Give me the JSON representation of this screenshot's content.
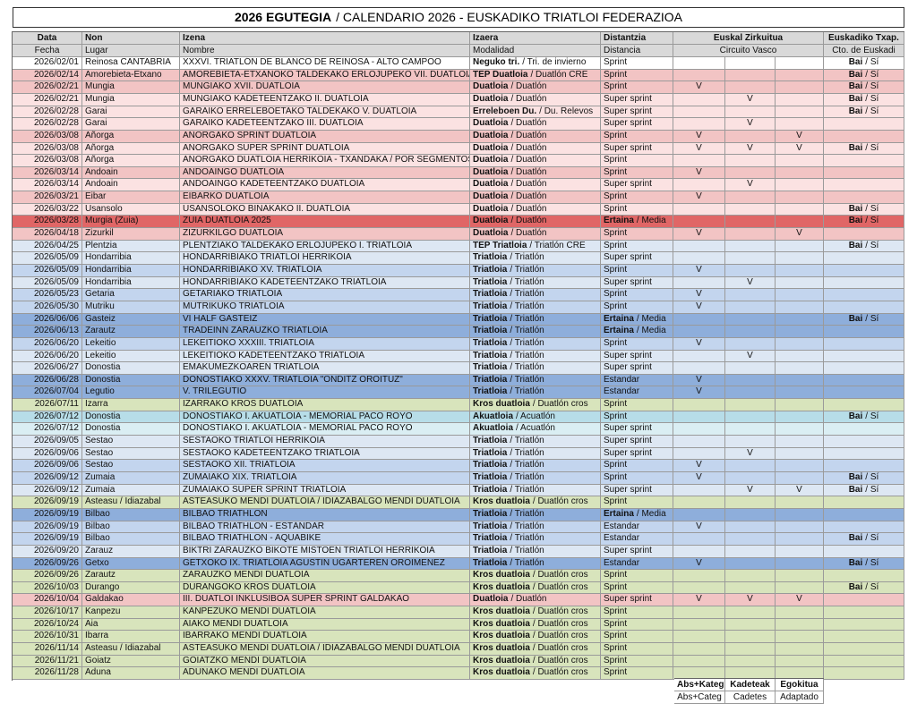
{
  "title": [
    "2026 EGUTEGIA",
    "/ CALENDARIO 2026 - EUSKADIKO TRIATLOI FEDERAZIOA"
  ],
  "header": {
    "row1": [
      "Data",
      "Non",
      "Izena",
      "Izaera",
      "Distantzia",
      "Euskal Zirkuitua",
      "Euskadiko Txap."
    ],
    "row2": [
      "Fecha",
      "Lugar",
      "Nombre",
      "Modalidad",
      "Distancia",
      "Circuito Vasco",
      "Cto. de  Euskadi"
    ]
  },
  "table": {
    "rows": [
      [
        "2026/02/01",
        "Reinosa CANTABRIA",
        "XXXVI. TRIATLÓN DE BLANCO DE REINOSA - ALTO CAMPOO",
        [
          "Neguko tri.",
          "/ Tri. de invierno"
        ],
        "Sprint",
        [
          null,
          null,
          null
        ],
        [
          "Bai",
          "/ Sí"
        ],
        "#ffffff"
      ],
      [
        "2026/02/14",
        "Amorebieta-Etxano",
        "AMOREBIETA-ETXANOKO TALDEKAKO ERLOJUPEKO VII. DUATLOIA",
        [
          "TEP Duatloia",
          "/ Duatlón CRE"
        ],
        "Sprint",
        [
          null,
          null,
          null
        ],
        [
          "Bai",
          "/ Sí"
        ],
        "#f2c4c4"
      ],
      [
        "2026/02/21",
        "Mungia",
        "MUNGIAKO XVII. DUATLOIA",
        [
          "Duatloia",
          "/ Duatlón"
        ],
        "Sprint",
        [
          "V",
          null,
          null
        ],
        [
          "Bai",
          "/ Sí"
        ],
        "#f2c4c4"
      ],
      [
        "2026/02/21",
        "Mungia",
        "MUNGIAKO KADETEENTZAKO II. DUATLOIA",
        [
          "Duatloia",
          "/ Duatlón"
        ],
        "Super sprint",
        [
          null,
          "V",
          null
        ],
        [
          "Bai",
          "/ Sí"
        ],
        "#fbe2e2"
      ],
      [
        "2026/02/28",
        "Garai",
        "GARAIKO ERRELEBOETAKO TALDEKAKO V. DUATLOIA",
        [
          "Erreleboen Du.",
          "/ Du. Relevos"
        ],
        "Super sprint",
        [
          null,
          null,
          null
        ],
        [
          "Bai",
          "/ Sí"
        ],
        "#fbe2e2"
      ],
      [
        "2026/02/28",
        "Garai",
        "GARAIKO KADETEENTZAKO III. DUATLOIA",
        [
          "Duatloia",
          "/ Duatlón"
        ],
        "Super sprint",
        [
          null,
          "V",
          null
        ],
        null,
        "#fbe2e2"
      ],
      [
        "2026/03/08",
        "Añorga",
        "AÑORGAKO SPRINT DUATLOIA",
        [
          "Duatloia",
          "/ Duatlón"
        ],
        "Sprint",
        [
          "V",
          null,
          "V"
        ],
        null,
        "#f2c4c4"
      ],
      [
        "2026/03/08",
        "Añorga",
        "AÑORGAKO SUPER SPRINT DUATLOIA",
        [
          "Duatloia",
          "/ Duatlón"
        ],
        "Super sprint",
        [
          "V",
          "V",
          "V"
        ],
        [
          "Bai",
          "/ Sí"
        ],
        "#fbe2e2"
      ],
      [
        "2026/03/08",
        "Añorga",
        "AÑORGAKO DUATLOIA HERRIKOIA - TXANDAKA / POR SEGMENTOS",
        [
          "Duatloia",
          "/ Duatlón"
        ],
        "Sprint",
        [
          null,
          null,
          null
        ],
        null,
        "#fbe2e2"
      ],
      [
        "2026/03/14",
        "Andoain",
        "ANDOAINGO DUATLOIA",
        [
          "Duatloia",
          "/ Duatlón"
        ],
        "Sprint",
        [
          "V",
          null,
          null
        ],
        null,
        "#f2c4c4"
      ],
      [
        "2026/03/14",
        "Andoain",
        "ANDOAINGO KADETEENTZAKO DUATLOIA",
        [
          "Duatloia",
          "/ Duatlón"
        ],
        "Super sprint",
        [
          null,
          "V",
          null
        ],
        null,
        "#fbe2e2"
      ],
      [
        "2026/03/21",
        "Eibar",
        "EIBARKO DUATLOIA",
        [
          "Duatloia",
          "/ Duatlón"
        ],
        "Sprint",
        [
          "V",
          null,
          null
        ],
        null,
        "#f2c4c4"
      ],
      [
        "2026/03/22",
        "Usansolo",
        "USANSOLOKO BINAKAKO II. DUATLOIA",
        [
          "Duatloia",
          "/ Duatlón"
        ],
        "Sprint",
        [
          null,
          null,
          null
        ],
        [
          "Bai",
          "/ Sí"
        ],
        "#fbe2e2"
      ],
      [
        "2026/03/28",
        "Murgia (Zuia)",
        "ZUIA DUATLOIA 2025",
        [
          "Duatloia",
          "/ Duatlón"
        ],
        [
          "Ertaina",
          "/ Media"
        ],
        [
          null,
          null,
          null
        ],
        [
          "Bai",
          "/ Sí"
        ],
        "#e06666"
      ],
      [
        "2026/04/18",
        "Zizurkil",
        "ZIZURKILGO DUATLOIA",
        [
          "Duatloia",
          "/ Duatlón"
        ],
        "Sprint",
        [
          "V",
          null,
          "V"
        ],
        null,
        "#f2c4c4"
      ],
      [
        "2026/04/25",
        "Plentzia",
        "PLENTZIAKO TALDEKAKO ERLOJUPEKO I. TRIATLOIA",
        [
          "TEP Triatloia",
          "/ Triatlón CRE"
        ],
        "Sprint",
        [
          null,
          null,
          null
        ],
        [
          "Bai",
          "/ Sí"
        ],
        "#dde7f3"
      ],
      [
        "2026/05/09",
        "Hondarribia",
        "HONDARRIBIAKO TRIATLOI HERRIKOIA",
        [
          "Triatloia",
          "/ Triatlón"
        ],
        "Super sprint",
        [
          null,
          null,
          null
        ],
        null,
        "#dde7f3"
      ],
      [
        "2026/05/09",
        "Hondarribia",
        "HONDARRIBIAKO XV. TRIATLOIA",
        [
          "Triatloia",
          "/ Triatlón"
        ],
        "Sprint",
        [
          "V",
          null,
          null
        ],
        null,
        "#c3d5ee"
      ],
      [
        "2026/05/09",
        "Hondarribia",
        "HONDARRIBIAKO KADETEENTZAKO TRIATLOIA",
        [
          "Triatloia",
          "/ Triatlón"
        ],
        "Super sprint",
        [
          null,
          "V",
          null
        ],
        null,
        "#dde7f3"
      ],
      [
        "2026/05/23",
        "Getaria",
        "GETARIAKO TRIATLOIA",
        [
          "Triatloia",
          "/ Triatlón"
        ],
        "Sprint",
        [
          "V",
          null,
          null
        ],
        null,
        "#c3d5ee"
      ],
      [
        "2026/05/30",
        "Mutriku",
        "MUTRIKUKO TRIATLOIA",
        [
          "Triatloia",
          "/ Triatlón"
        ],
        "Sprint",
        [
          "V",
          null,
          null
        ],
        null,
        "#c3d5ee"
      ],
      [
        "2026/06/06",
        "Gasteiz",
        "VI HALF GASTEIZ",
        [
          "Triatloia",
          "/ Triatlón"
        ],
        [
          "Ertaina",
          "/ Media"
        ],
        [
          null,
          null,
          null
        ],
        [
          "Bai",
          "/ Sí"
        ],
        "#8eaedb"
      ],
      [
        "2026/06/13",
        "Zarautz",
        "TRADEINN ZARAUZKO TRIATLOIA",
        [
          "Triatloia",
          "/ Triatlón"
        ],
        [
          "Ertaina",
          "/ Media"
        ],
        [
          null,
          null,
          null
        ],
        null,
        "#8eaedb"
      ],
      [
        "2026/06/20",
        "Lekeitio",
        "LEKEITIOKO XXXIII. TRIATLOIA",
        [
          "Triatloia",
          "/ Triatlón"
        ],
        "Sprint",
        [
          "V",
          null,
          null
        ],
        null,
        "#c3d5ee"
      ],
      [
        "2026/06/20",
        "Lekeitio",
        "LEKEITIOKO KADETEENTZAKO TRIATLOIA",
        [
          "Triatloia",
          "/ Triatlón"
        ],
        "Super sprint",
        [
          null,
          "V",
          null
        ],
        null,
        "#dde7f3"
      ],
      [
        "2026/06/27",
        "Donostia",
        "EMAKUMEZKOAREN TRIATLOIA",
        [
          "Triatloia",
          "/ Triatlón"
        ],
        "Super sprint",
        [
          null,
          null,
          null
        ],
        null,
        "#dde7f3"
      ],
      [
        "2026/06/28",
        "Donostia",
        "DONOSTIAKO XXXV. TRIATLOIA \"ONDITZ OROITUZ\"",
        [
          "Triatloia",
          "/ Triatlón"
        ],
        "Estandar",
        [
          "V",
          null,
          null
        ],
        null,
        "#8eaedb"
      ],
      [
        "2026/07/04",
        "Legutio",
        "V. TRILEGUTIO",
        [
          "Triatloia",
          "/ Triatlón"
        ],
        "Estandar",
        [
          "V",
          null,
          null
        ],
        null,
        "#8eaedb"
      ],
      [
        "2026/07/11",
        "Izarra",
        "IZARRAKO KROS DUATLOIA",
        [
          "Kros duatloia",
          "/ Duatlón cros"
        ],
        "Sprint",
        [
          null,
          null,
          null
        ],
        null,
        "#d8e4bc"
      ],
      [
        "2026/07/12",
        "Donostia",
        "DONOSTIAKO I. AKUATLOIA - MEMORIAL PACO ROYO",
        [
          "Akuatloia",
          "/ Acuatlón"
        ],
        "Sprint",
        [
          null,
          null,
          null
        ],
        [
          "Bai",
          "/ Sí"
        ],
        "#b7dde8"
      ],
      [
        "2026/07/12",
        "Donostia",
        "DONOSTIAKO I. AKUATLOIA - MEMORIAL PACO ROYO",
        [
          "Akuatloia",
          "/ Acuatlón"
        ],
        "Super sprint",
        [
          null,
          null,
          null
        ],
        null,
        "#daeef3"
      ],
      [
        "2026/09/05",
        "Sestao",
        "SESTAOKO TRIATLOI HERRIKOIA",
        [
          "Triatloia",
          "/ Triatlón"
        ],
        "Super sprint",
        [
          null,
          null,
          null
        ],
        null,
        "#dde7f3"
      ],
      [
        "2026/09/06",
        "Sestao",
        "SESTAOKO KADETEENTZAKO TRIATLOIA",
        [
          "Triatloia",
          "/ Triatlón"
        ],
        "Super sprint",
        [
          null,
          "V",
          null
        ],
        null,
        "#dde7f3"
      ],
      [
        "2026/09/06",
        "Sestao",
        "SESTAOKO XII. TRIATLOIA",
        [
          "Triatloia",
          "/ Triatlón"
        ],
        "Sprint",
        [
          "V",
          null,
          null
        ],
        null,
        "#c3d5ee"
      ],
      [
        "2026/09/12",
        "Zumaia",
        "ZUMAIAKO XIX. TRIATLOIA",
        [
          "Triatloia",
          "/ Triatlón"
        ],
        "Sprint",
        [
          "V",
          null,
          null
        ],
        [
          "Bai",
          "/ Sí"
        ],
        "#c3d5ee"
      ],
      [
        "2026/09/12",
        "Zumaia",
        "ZUMAIAKO SUPER SPRINT TRIATLOIA",
        [
          "Triatloia",
          "/ Triatlón"
        ],
        "Super sprint",
        [
          null,
          "V",
          "V"
        ],
        [
          "Bai",
          "/ Sí"
        ],
        "#dde7f3"
      ],
      [
        "2026/09/19",
        "Asteasu / Idiazabal",
        "ASTEASUKO MENDI DUATLOIA / IDIAZABALGO MENDI DUATLOIA",
        [
          "Kros duatloia",
          "/ Duatlón cros"
        ],
        "Sprint",
        [
          null,
          null,
          null
        ],
        null,
        "#d8e4bc"
      ],
      [
        "2026/09/19",
        "Bilbao",
        "BILBAO TRIATHLON",
        [
          "Triatloia",
          "/ Triatlón"
        ],
        [
          "Ertaina",
          "/ Media"
        ],
        [
          null,
          null,
          null
        ],
        null,
        "#8eaedb"
      ],
      [
        "2026/09/19",
        "Bilbao",
        "BILBAO TRIATHLON - ESTÁNDAR",
        [
          "Triatloia",
          "/ Triatlón"
        ],
        "Estandar",
        [
          "V",
          null,
          null
        ],
        null,
        "#c3d5ee"
      ],
      [
        "2026/09/19",
        "Bilbao",
        "BILBAO TRIATHLON - AQUABIKE",
        [
          "Triatloia",
          "/ Triatlón"
        ],
        "Estandar",
        [
          null,
          null,
          null
        ],
        [
          "Bai",
          "/ Sí"
        ],
        "#c3d5ee"
      ],
      [
        "2026/09/20",
        "Zarauz",
        "BIKTRI ZARAUZKO BIKOTE MISTOEN TRIATLOI HERRIKOIA",
        [
          "Triatloia",
          "/ Triatlón"
        ],
        "Super sprint",
        [
          null,
          null,
          null
        ],
        null,
        "#dde7f3"
      ],
      [
        "2026/09/26",
        "Getxo",
        "GETXOKO IX. TRIATLOIA AGUSTIN UGARTEREN OROIMENEZ",
        [
          "Triatloia",
          "/ Triatlón"
        ],
        "Estandar",
        [
          "V",
          null,
          null
        ],
        [
          "Bai",
          "/ Sí"
        ],
        "#8eaedb"
      ],
      [
        "2026/09/26",
        "Zarautz",
        "ZARAUZKO MENDI DUATLOIA",
        [
          "Kros duatloia",
          "/ Duatlón cros"
        ],
        "Sprint",
        [
          null,
          null,
          null
        ],
        null,
        "#d8e4bc"
      ],
      [
        "2026/10/03",
        "Durango",
        "DURANGOKO KROS DUATLOIA",
        [
          "Kros duatloia",
          "/ Duatlón cros"
        ],
        "Sprint",
        [
          null,
          null,
          null
        ],
        [
          "Bai",
          "/ Sí"
        ],
        "#d8e4bc"
      ],
      [
        "2026/10/04",
        "Galdakao",
        "III. DUATLOI INKLUSIBOA SUPER SPRINT GALDAKAO",
        [
          "Duatloia",
          "/ Duatlón"
        ],
        "Super sprint",
        [
          "V",
          "V",
          "V"
        ],
        null,
        "#f2c4c4"
      ],
      [
        "2026/10/17",
        "Kanpezu",
        "KANPEZUKO MENDI DUATLOIA",
        [
          "Kros duatloia",
          "/ Duatlón cros"
        ],
        "Sprint",
        [
          null,
          null,
          null
        ],
        null,
        "#d8e4bc"
      ],
      [
        "2026/10/24",
        "Aia",
        "AIAKO MENDI DUATLOIA",
        [
          "Kros duatloia",
          "/ Duatlón cros"
        ],
        "Sprint",
        [
          null,
          null,
          null
        ],
        null,
        "#d8e4bc"
      ],
      [
        "2026/10/31",
        "Ibarra",
        "IBARRAKO MENDI DUATLOIA",
        [
          "Kros duatloia",
          "/ Duatlón cros"
        ],
        "Sprint",
        [
          null,
          null,
          null
        ],
        null,
        "#d8e4bc"
      ],
      [
        "2026/11/14",
        "Asteasu / Idiazabal",
        "ASTEASUKO MENDI DUATLOIA / IDIAZABALGO MENDI DUATLOIA",
        [
          "Kros duatloia",
          "/ Duatlón cros"
        ],
        "Sprint",
        [
          null,
          null,
          null
        ],
        null,
        "#d8e4bc"
      ],
      [
        "2026/11/21",
        "Goiatz",
        "GOIATZKO MENDI DUATLOIA",
        [
          "Kros duatloia",
          "/ Duatlón cros"
        ],
        "Sprint",
        [
          null,
          null,
          null
        ],
        null,
        "#d8e4bc"
      ],
      [
        "2026/11/28",
        "Aduna",
        "ADUNAKO MENDI DUATLOIA",
        [
          "Kros duatloia",
          "/ Duatlón cros"
        ],
        "Sprint",
        [
          null,
          null,
          null
        ],
        null,
        "#d8e4bc"
      ]
    ]
  },
  "legend": [
    [
      "Abs+Kateg",
      "Abs+Categ"
    ],
    [
      "Kadeteak",
      "Cadetes"
    ],
    [
      "Egokitua",
      "Adaptado"
    ]
  ]
}
